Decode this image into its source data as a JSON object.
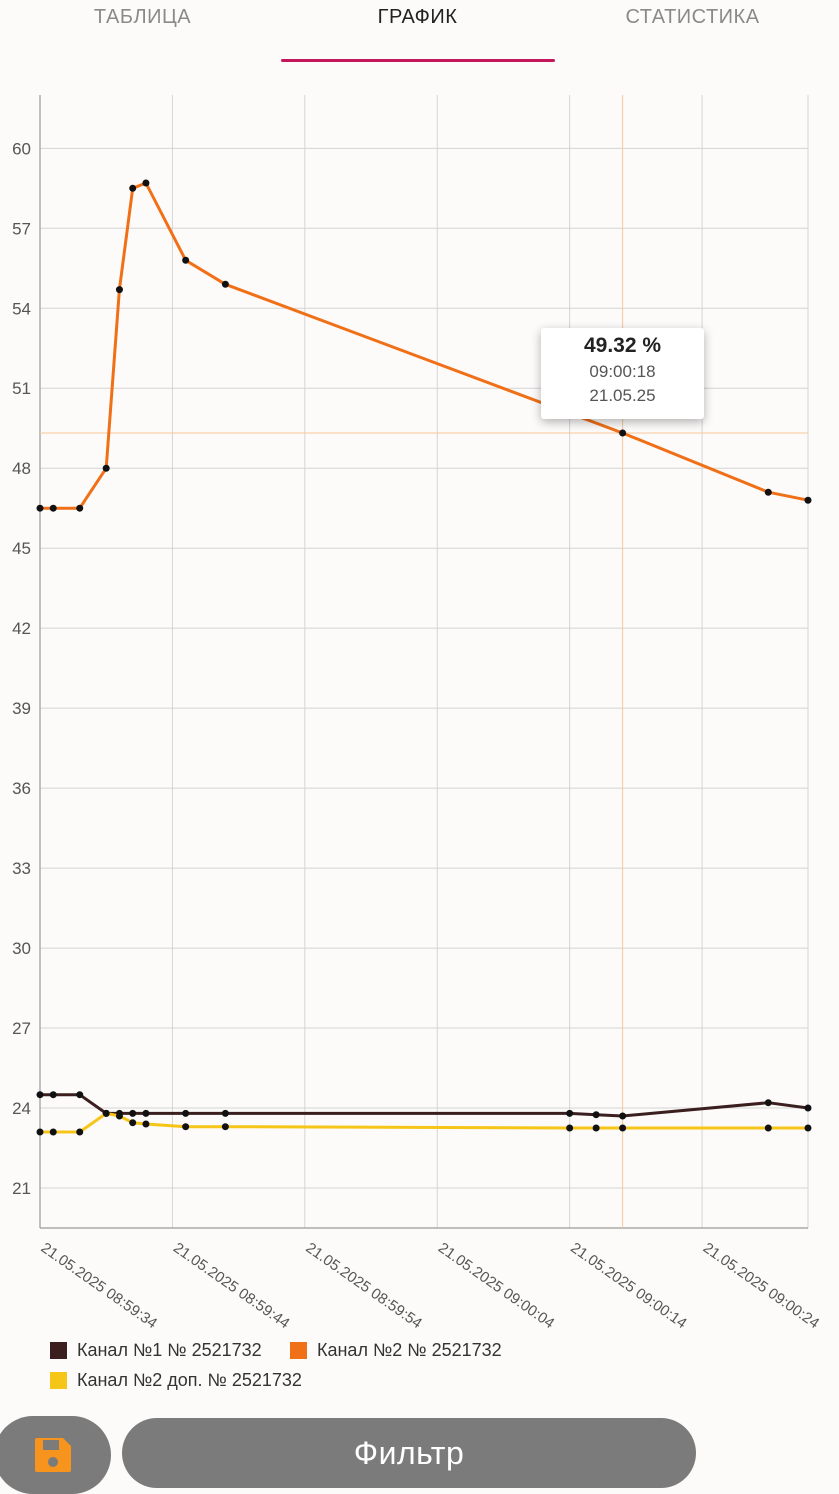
{
  "tabs": [
    {
      "label": "ТАБЛИЦА",
      "active": false
    },
    {
      "label": "ГРАФИК",
      "active": true
    },
    {
      "label": "СТАТИСТИКА",
      "active": false
    }
  ],
  "chart_data": {
    "type": "line",
    "ylim": [
      19.5,
      62
    ],
    "y_ticks": [
      21,
      24,
      27,
      30,
      33,
      36,
      39,
      42,
      45,
      48,
      51,
      54,
      57,
      60
    ],
    "x_tick_labels": [
      "21.05.2025 08:59:34",
      "21.05.2025 08:59:44",
      "21.05.2025 08:59:54",
      "21.05.2025 09:00:04",
      "21.05.2025 09:00:14",
      "21.05.2025 09:00:24"
    ],
    "x_unit_seconds_from_first_tick": true,
    "xlim": [
      0,
      58
    ],
    "grid": true,
    "series": [
      {
        "name": "Канал №1 № 2521732",
        "color": "#3b1f1f",
        "x": [
          0,
          1,
          3,
          5,
          6,
          7,
          8,
          11,
          14,
          40,
          42,
          44,
          55,
          58
        ],
        "y": [
          24.5,
          24.5,
          24.5,
          23.8,
          23.8,
          23.8,
          23.8,
          23.8,
          23.8,
          23.8,
          23.75,
          23.7,
          24.2,
          24.0
        ]
      },
      {
        "name": "Канал №2 № 2521732",
        "color": "#f07018",
        "x": [
          0,
          1,
          3,
          5,
          6,
          7,
          8,
          11,
          14,
          44,
          55,
          58
        ],
        "y": [
          46.5,
          46.5,
          46.5,
          48.0,
          54.7,
          58.5,
          58.7,
          55.8,
          54.9,
          49.32,
          47.1,
          46.8
        ]
      },
      {
        "name": "Канал №2 доп. № 2521732",
        "color": "#f5c518",
        "x": [
          0,
          1,
          3,
          5,
          6,
          7,
          8,
          11,
          14,
          40,
          42,
          44,
          55,
          58
        ],
        "y": [
          23.1,
          23.1,
          23.1,
          23.8,
          23.7,
          23.45,
          23.4,
          23.3,
          23.3,
          23.25,
          23.25,
          23.25,
          23.25,
          23.25
        ]
      }
    ],
    "crosshair": {
      "x": 44,
      "y": 49.32
    }
  },
  "tooltip": {
    "value": "49.32 %",
    "time": "09:00:18",
    "date": "21.05.25"
  },
  "colors": {
    "accent": "#c2185b",
    "crosshair": "#f6c89a",
    "button": "#7b7b7b",
    "save_icon": "#f7941d"
  },
  "buttons": {
    "save_icon": "floppy-disk-icon",
    "filter_label": "Фильтр"
  }
}
